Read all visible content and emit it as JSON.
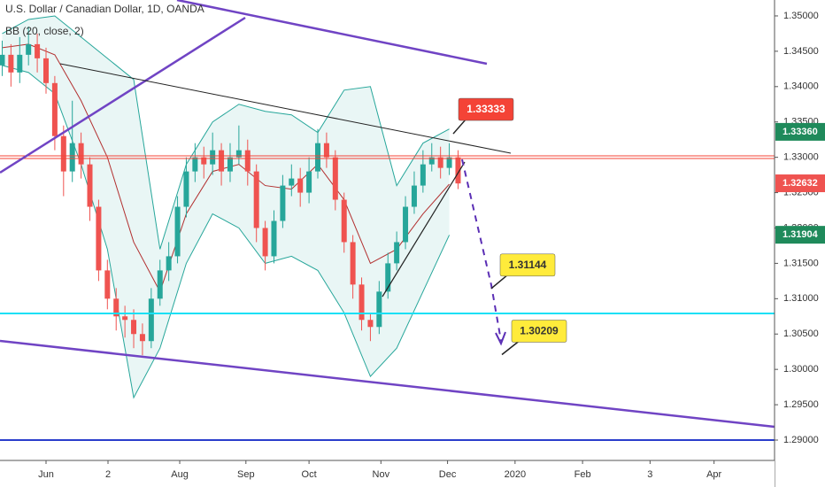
{
  "chart_data": {
    "type": "candlestick",
    "title": "U.S. Dollar / Canadian Dollar, 1D, OANDA",
    "indicator": "BB (20, close, 2)",
    "categories": [
      null,
      null,
      null,
      null,
      null,
      null,
      null,
      null,
      null,
      null,
      null,
      null,
      null,
      null,
      null,
      null,
      null,
      null,
      null,
      null,
      null,
      null,
      null,
      null,
      null,
      null,
      null,
      null,
      null,
      null,
      null,
      null,
      null,
      null,
      null,
      null,
      null,
      null,
      null,
      null,
      null,
      null,
      null,
      null,
      null,
      null,
      null,
      null,
      null,
      null,
      null,
      null,
      null
    ],
    "open": [
      1.343,
      1.3445,
      1.342,
      1.3445,
      1.346,
      1.344,
      1.3405,
      1.333,
      1.328,
      1.332,
      1.329,
      1.323,
      1.314,
      1.31,
      1.3075,
      1.307,
      1.305,
      1.304,
      1.31,
      1.314,
      1.316,
      1.323,
      1.328,
      1.33,
      1.329,
      1.331,
      1.328,
      1.33,
      1.331,
      1.328,
      1.32,
      1.316,
      1.321,
      1.326,
      1.327,
      1.325,
      1.328,
      1.332,
      1.33,
      1.324,
      1.318,
      1.312,
      1.307,
      1.306,
      1.311,
      1.315,
      1.318,
      1.323,
      1.326,
      1.329,
      1.33,
      1.3285,
      1.33
    ],
    "high": [
      1.3465,
      1.346,
      1.347,
      1.3485,
      1.3475,
      1.3455,
      1.3415,
      1.3345,
      1.338,
      1.3335,
      1.33,
      1.324,
      1.3155,
      1.3115,
      1.309,
      1.3085,
      1.3065,
      1.3115,
      1.3155,
      1.318,
      1.3245,
      1.33,
      1.332,
      1.3315,
      1.3335,
      1.332,
      1.332,
      1.3345,
      1.3325,
      1.329,
      1.321,
      1.3225,
      1.3275,
      1.329,
      1.3285,
      1.33,
      1.334,
      1.3335,
      1.331,
      1.325,
      1.319,
      1.313,
      1.308,
      1.3125,
      1.3165,
      1.3195,
      1.3245,
      1.328,
      1.331,
      1.332,
      1.3315,
      1.332,
      1.331
    ],
    "low": [
      1.3415,
      1.34,
      1.3405,
      1.343,
      1.342,
      1.339,
      1.331,
      1.3245,
      1.3265,
      1.327,
      1.321,
      1.3125,
      1.3085,
      1.3055,
      1.3045,
      1.303,
      1.302,
      1.303,
      1.309,
      1.3125,
      1.315,
      1.3215,
      1.3265,
      1.327,
      1.3275,
      1.326,
      1.3265,
      1.329,
      1.326,
      1.318,
      1.314,
      1.315,
      1.32,
      1.3245,
      1.323,
      1.3235,
      1.327,
      1.3285,
      1.3225,
      1.3165,
      1.31,
      1.3055,
      1.304,
      1.305,
      1.31,
      1.314,
      1.317,
      1.322,
      1.325,
      1.328,
      1.327,
      1.3275,
      1.3255
    ],
    "close": [
      1.3445,
      1.342,
      1.3445,
      1.346,
      1.344,
      1.3405,
      1.333,
      1.328,
      1.332,
      1.329,
      1.323,
      1.314,
      1.31,
      1.3075,
      1.307,
      1.305,
      1.304,
      1.31,
      1.314,
      1.316,
      1.323,
      1.328,
      1.33,
      1.329,
      1.331,
      1.328,
      1.33,
      1.331,
      1.328,
      1.32,
      1.316,
      1.321,
      1.326,
      1.327,
      1.325,
      1.328,
      1.332,
      1.33,
      1.324,
      1.318,
      1.312,
      1.307,
      1.306,
      1.311,
      1.315,
      1.318,
      1.323,
      1.326,
      1.329,
      1.33,
      1.3285,
      1.33,
      1.3263
    ],
    "up_color": "#26a69a",
    "down_color": "#ef5350",
    "bands": {
      "x": [
        0,
        3,
        6,
        9,
        12,
        15,
        18,
        21,
        24,
        27,
        30,
        33,
        36,
        39,
        42,
        45,
        48,
        51
      ],
      "upper": [
        1.3475,
        1.3495,
        1.35,
        1.347,
        1.344,
        1.341,
        1.317,
        1.329,
        1.335,
        1.3375,
        1.3365,
        1.336,
        1.3335,
        1.3395,
        1.34,
        1.326,
        1.332,
        1.334
      ],
      "basis": [
        1.3455,
        1.346,
        1.3445,
        1.338,
        1.33,
        1.318,
        1.311,
        1.322,
        1.328,
        1.329,
        1.326,
        1.3255,
        1.329,
        1.324,
        1.315,
        1.317,
        1.322,
        1.3262
      ],
      "lower": [
        1.343,
        1.342,
        1.339,
        1.329,
        1.317,
        1.296,
        1.303,
        1.315,
        1.322,
        1.32,
        1.315,
        1.316,
        1.314,
        1.308,
        1.299,
        1.303,
        1.311,
        1.319
      ],
      "band_color": "#26a69a",
      "basis_color": "#b22f2f"
    },
    "xlim": [
      -0.25,
      88.1
    ],
    "ylim": [
      1.28712,
      1.35225
    ],
    "xticks": [
      {
        "value": 5,
        "label": "Jun"
      },
      {
        "value": 12.07,
        "label": "2"
      },
      {
        "value": 20.25,
        "label": "Aug"
      },
      {
        "value": 27.8,
        "label": "Sep"
      },
      {
        "value": 35,
        "label": "Oct"
      },
      {
        "value": 43.2,
        "label": "Nov"
      },
      {
        "value": 50.8,
        "label": "Dec"
      },
      {
        "value": 58.5,
        "label": "2020"
      },
      {
        "value": 66.2,
        "label": "Feb"
      },
      {
        "value": 73.9,
        "label": "3"
      },
      {
        "value": 81.2,
        "label": "Apr"
      }
    ],
    "yticks": [
      {
        "value": 1.35,
        "label": "1.35000"
      },
      {
        "value": 1.345,
        "label": "1.34500"
      },
      {
        "value": 1.34,
        "label": "1.34000"
      },
      {
        "value": 1.335,
        "label": "1.33500"
      },
      {
        "value": 1.33,
        "label": "1.33000"
      },
      {
        "value": 1.325,
        "label": "1.32500"
      },
      {
        "value": 1.32,
        "label": "1.32000"
      },
      {
        "value": 1.315,
        "label": "1.31500"
      },
      {
        "value": 1.31,
        "label": "1.31000"
      },
      {
        "value": 1.305,
        "label": "1.30500"
      },
      {
        "value": 1.3,
        "label": "1.30000"
      },
      {
        "value": 1.295,
        "label": "1.29500"
      },
      {
        "value": 1.29,
        "label": "1.29000"
      }
    ],
    "price_labels": [
      {
        "value": 1.3336,
        "label": "1.33360",
        "color": "#1f8a5b"
      },
      {
        "value": 1.32632,
        "label": "1.32632",
        "color": "#ef5350"
      },
      {
        "value": 1.31904,
        "label": "1.31904",
        "color": "#1f8a5b"
      }
    ],
    "callouts": [
      {
        "value": 1.33333,
        "color": "#f44336",
        "text_color": "#ffffff"
      },
      {
        "value": 1.31144,
        "color": "#ffeb3b",
        "text_color": "#333333"
      },
      {
        "value": 1.30209,
        "color": "#ffeb3b",
        "text_color": "#333333"
      }
    ]
  }
}
